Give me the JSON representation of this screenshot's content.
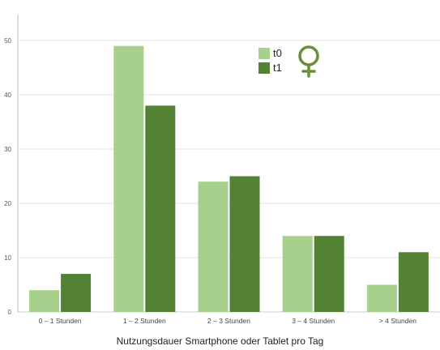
{
  "chart_data": {
    "type": "bar",
    "title": "",
    "xlabel": "Nutzungsdauer Smartphone oder Tablet pro Tag",
    "ylabel": "",
    "categories": [
      "0 – 1 Stunden",
      "1 – 2 Stunden",
      "2 – 3 Stunden",
      "3 – 4 Stunden",
      "> 4 Stunden"
    ],
    "series": [
      {
        "name": "t0",
        "values": [
          4,
          49,
          24,
          14,
          5
        ],
        "color": "#a8d08d"
      },
      {
        "name": "t1",
        "values": [
          7,
          38,
          25,
          14,
          11
        ],
        "color": "#548235"
      }
    ],
    "yticks": [
      0,
      10,
      20,
      30,
      40,
      50
    ],
    "ytick_labels": [
      "0",
      "10",
      "20",
      "30",
      "40",
      "50"
    ],
    "ylim": [
      0,
      55
    ],
    "grid": true,
    "legend_position": "top-right",
    "legend_icon": "female-symbol-icon",
    "legend_icon_color": "#6a8f3a"
  }
}
